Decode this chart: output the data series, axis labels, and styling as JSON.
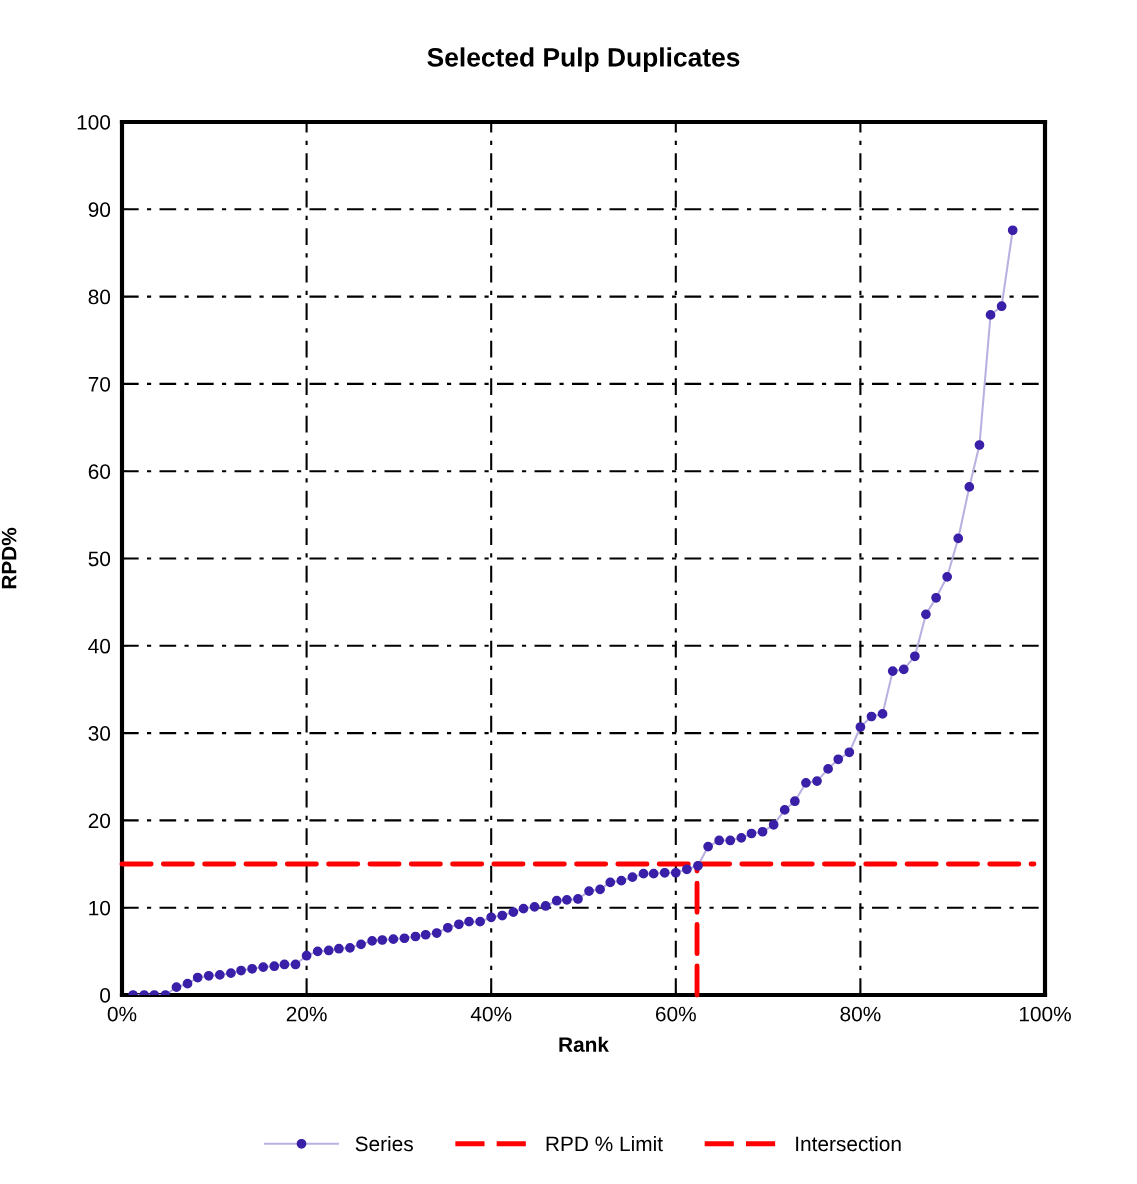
{
  "chart_data": {
    "type": "line",
    "title": "Selected Pulp Duplicates",
    "xlabel": "Rank",
    "ylabel": "RPD%",
    "xlim": [
      0,
      100
    ],
    "ylim": [
      0,
      100
    ],
    "xticks": [
      {
        "value": 0,
        "label": "0%"
      },
      {
        "value": 20,
        "label": "20%"
      },
      {
        "value": 40,
        "label": "40%"
      },
      {
        "value": 60,
        "label": "60%"
      },
      {
        "value": 80,
        "label": "80%"
      },
      {
        "value": 100,
        "label": "100%"
      }
    ],
    "yticks": [
      0,
      10,
      20,
      30,
      40,
      50,
      60,
      70,
      80,
      90,
      100
    ],
    "grid": true,
    "legend": "bottom",
    "series": [
      {
        "name": "Series",
        "color": "#3a1fa8",
        "marker": "circle",
        "line_style": "solid",
        "x": [
          1.2,
          2.4,
          3.5,
          4.7,
          5.9,
          7.1,
          8.2,
          9.4,
          10.6,
          11.8,
          12.9,
          14.1,
          15.3,
          16.5,
          17.6,
          18.8,
          20.0,
          21.2,
          22.4,
          23.5,
          24.7,
          25.9,
          27.1,
          28.2,
          29.4,
          30.6,
          31.8,
          32.9,
          34.1,
          35.3,
          36.5,
          37.6,
          38.8,
          40.0,
          41.2,
          42.4,
          43.5,
          44.7,
          45.9,
          47.1,
          48.2,
          49.4,
          50.6,
          51.8,
          52.9,
          54.1,
          55.3,
          56.5,
          57.6,
          58.8,
          60.0,
          61.2,
          62.4,
          63.5,
          64.7,
          65.9,
          67.1,
          68.2,
          69.4,
          70.6,
          71.8,
          72.9,
          74.1,
          75.3,
          76.5,
          77.6,
          78.8,
          80.0,
          81.2,
          82.4,
          83.5,
          84.7,
          85.9,
          87.1,
          88.2,
          89.4,
          90.6,
          91.8,
          92.9,
          94.1,
          95.3,
          96.5
        ],
        "values": [
          0,
          0,
          0,
          0,
          0.9,
          1.3,
          2.0,
          2.2,
          2.3,
          2.5,
          2.8,
          3.0,
          3.2,
          3.3,
          3.5,
          3.5,
          4.5,
          5.0,
          5.1,
          5.3,
          5.4,
          5.8,
          6.2,
          6.3,
          6.4,
          6.5,
          6.7,
          6.9,
          7.1,
          7.7,
          8.1,
          8.4,
          8.4,
          8.9,
          9.1,
          9.5,
          9.9,
          10.1,
          10.2,
          10.8,
          10.9,
          11.0,
          11.9,
          12.1,
          12.9,
          13.1,
          13.5,
          13.9,
          13.9,
          14.0,
          14.0,
          14.4,
          14.8,
          17.0,
          17.7,
          17.7,
          18.0,
          18.5,
          18.7,
          19.5,
          21.2,
          22.2,
          24.3,
          24.5,
          25.9,
          27.0,
          27.8,
          30.7,
          31.9,
          32.2,
          37.1,
          37.3,
          38.8,
          43.6,
          45.5,
          47.9,
          52.3,
          58.2,
          63.0,
          77.9,
          78.9,
          87.6
        ]
      },
      {
        "name": "RPD % Limit",
        "color": "#ff0000",
        "marker": "none",
        "line_style": "dashed",
        "x": [
          0,
          98.8
        ],
        "values": [
          15,
          15
        ]
      },
      {
        "name": "Intersection",
        "color": "#ff0000",
        "marker": "none",
        "line_style": "dashed",
        "x": [
          62.3,
          62.3
        ],
        "values": [
          0,
          15
        ]
      }
    ]
  }
}
